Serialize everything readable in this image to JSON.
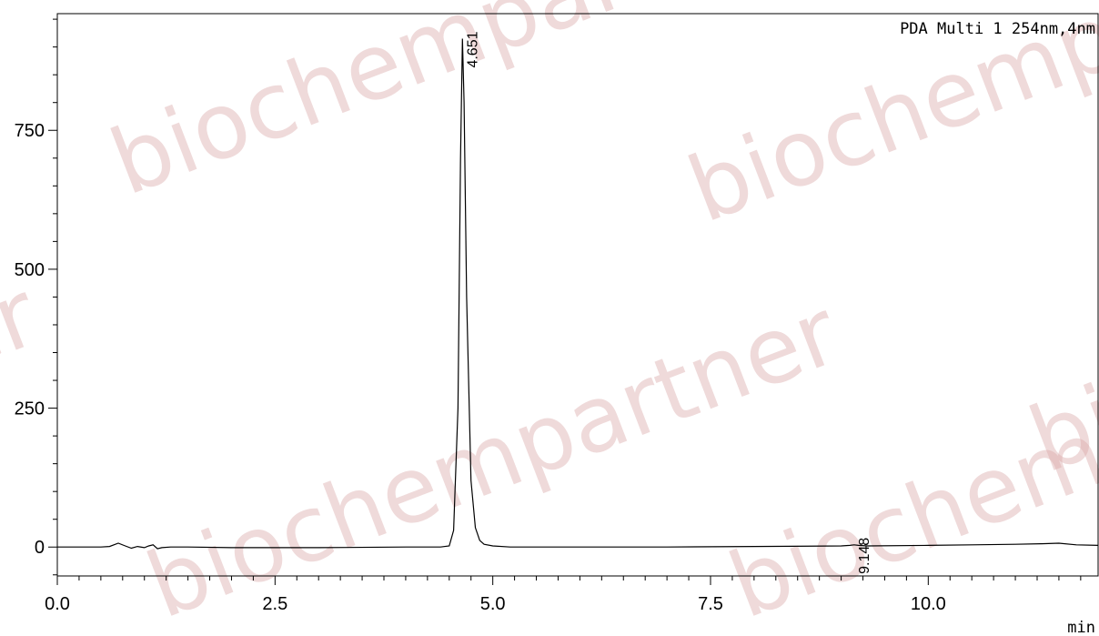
{
  "watermark": {
    "text_1": "biochempartner",
    "text_2": "biochempartner",
    "text_3": "biochempartner",
    "text_4": "biochempartner",
    "text_5": "biochempartner",
    "text_6": "biochempartner",
    "color": "#d9a6a6"
  },
  "chart_data": {
    "type": "line",
    "title": "",
    "detector_label": "PDA Multi 1 254nm,4nm",
    "xlabel": "min",
    "ylabel": "",
    "xlim": [
      0.0,
      11.95
    ],
    "ylim": [
      -52,
      960
    ],
    "x_ticks": [
      0.0,
      2.5,
      5.0,
      7.5,
      10.0
    ],
    "x_tick_labels": [
      "0.0",
      "2.5",
      "5.0",
      "7.5",
      "10.0"
    ],
    "y_ticks": [
      0,
      250,
      500,
      750
    ],
    "y_tick_labels": [
      "0",
      "250",
      "500",
      "750"
    ],
    "grid": false,
    "peaks": [
      {
        "retention_time": 4.651,
        "label": "4.651",
        "height": 915
      },
      {
        "retention_time": 9.148,
        "label": "9.148",
        "height": 4
      }
    ],
    "series": [
      {
        "x": [
          0.0,
          0.5,
          0.6,
          0.7,
          0.78,
          0.85,
          0.92,
          1.0,
          1.05,
          1.1,
          1.15,
          1.2,
          1.3,
          1.5,
          2.0,
          3.0,
          4.0,
          4.4,
          4.5,
          4.55,
          4.6,
          4.63,
          4.651,
          4.67,
          4.7,
          4.75,
          4.8,
          4.85,
          4.9,
          5.0,
          5.2,
          6.0,
          7.0,
          8.0,
          9.0,
          9.1,
          9.148,
          9.2,
          9.3,
          10.0,
          10.5,
          11.0,
          11.3,
          11.5,
          11.7,
          11.95
        ],
        "y": [
          0,
          0,
          1,
          7,
          2,
          -2,
          1,
          -1,
          2,
          4,
          -3,
          -1,
          0,
          0,
          -1,
          -1,
          0,
          0,
          2,
          30,
          250,
          700,
          915,
          800,
          450,
          120,
          35,
          12,
          5,
          2,
          0,
          0,
          0,
          1,
          2,
          3,
          4,
          3,
          2,
          3,
          4,
          5,
          6,
          7,
          4,
          3
        ]
      }
    ]
  }
}
